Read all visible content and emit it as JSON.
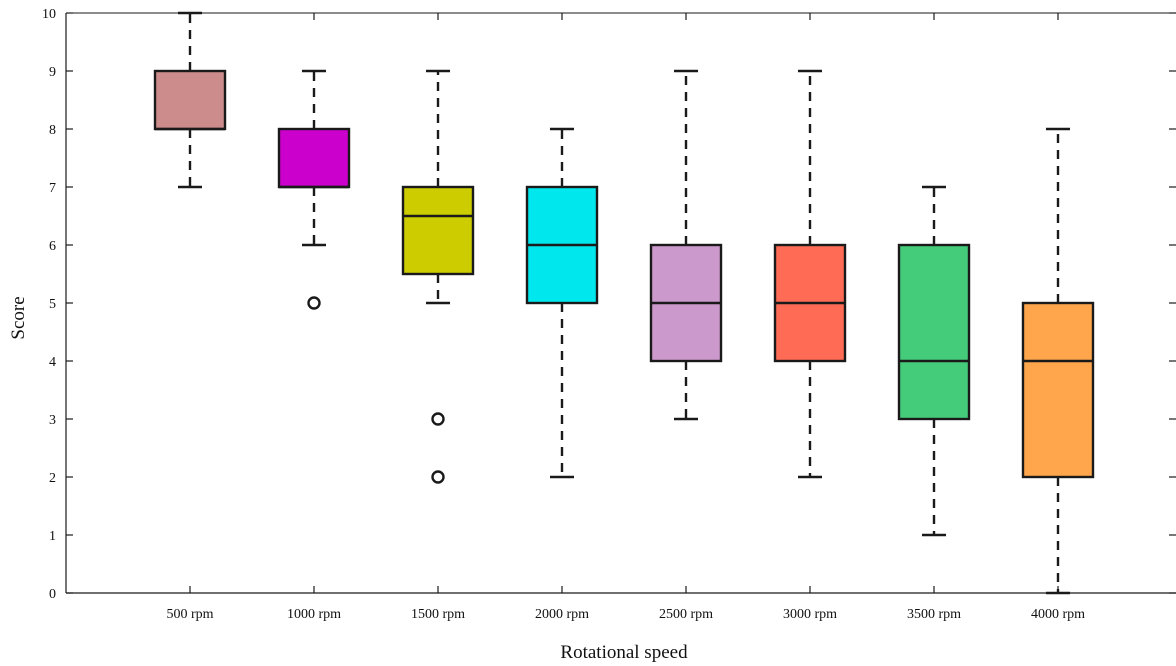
{
  "chart_data": {
    "type": "boxplot",
    "title": "",
    "xlabel": "Rotational speed",
    "ylabel": "Score",
    "ylim": [
      0,
      10
    ],
    "yticks": [
      0,
      1,
      2,
      3,
      4,
      5,
      6,
      7,
      8,
      9,
      10
    ],
    "grid": false,
    "categories": [
      "500 rpm",
      "1000 rpm",
      "1500 rpm",
      "2000 rpm",
      "2500 rpm",
      "3000 rpm",
      "3500 rpm",
      "4000 rpm"
    ],
    "boxes": [
      {
        "category": "500 rpm",
        "whisker_low": 7,
        "q1": 8,
        "median": 8,
        "q3": 9,
        "whisker_high": 10,
        "outliers": [],
        "color": "#cc8c8c"
      },
      {
        "category": "1000 rpm",
        "whisker_low": 6,
        "q1": 7,
        "median": 7,
        "q3": 8,
        "whisker_high": 9,
        "outliers": [
          5
        ],
        "color": "#cc00cc"
      },
      {
        "category": "1500 rpm",
        "whisker_low": 5,
        "q1": 5.5,
        "median": 6.5,
        "q3": 7,
        "whisker_high": 9,
        "outliers": [
          3,
          2
        ],
        "color": "#cccc00"
      },
      {
        "category": "2000 rpm",
        "whisker_low": 2,
        "q1": 5,
        "median": 6,
        "q3": 7,
        "whisker_high": 8,
        "outliers": [],
        "color": "#00e8ee"
      },
      {
        "category": "2500 rpm",
        "whisker_low": 3,
        "q1": 4,
        "median": 5,
        "q3": 6,
        "whisker_high": 9,
        "outliers": [],
        "color": "#cc99cc"
      },
      {
        "category": "3000 rpm",
        "whisker_low": 2,
        "q1": 4,
        "median": 5,
        "q3": 6,
        "whisker_high": 9,
        "outliers": [],
        "color": "#ff6b55"
      },
      {
        "category": "3500 rpm",
        "whisker_low": 1,
        "q1": 3,
        "median": 4,
        "q3": 6,
        "whisker_high": 7,
        "outliers": [],
        "color": "#44cc7a"
      },
      {
        "category": "4000 rpm",
        "whisker_low": 0,
        "q1": 2,
        "median": 4,
        "q3": 5,
        "whisker_high": 8,
        "outliers": [],
        "color": "#ffa64d"
      }
    ]
  }
}
